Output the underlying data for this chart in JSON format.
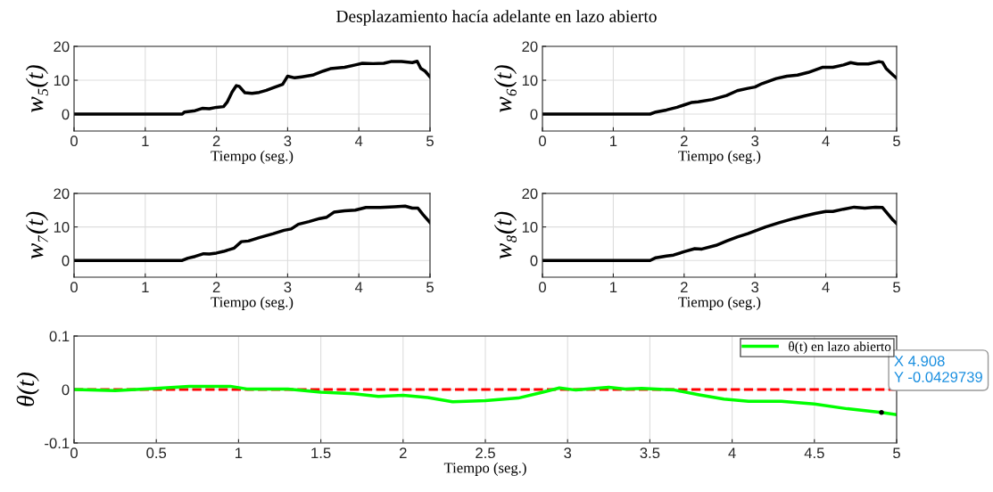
{
  "chart_data": [
    {
      "type": "line",
      "title": "Desplazamiento hacía adelante en lazo abierto",
      "xlabel": "Tiempo (seg.)",
      "ylabel": "w₅(t)",
      "xlim": [
        0,
        5
      ],
      "xticks": [
        0,
        1,
        2,
        3,
        4,
        5
      ],
      "ylim": [
        -5,
        20
      ],
      "yticks": [
        0,
        10,
        20
      ],
      "grid": true,
      "series": [
        {
          "color": "#000000",
          "x": [
            0,
            1.52,
            1.55,
            1.7,
            1.8,
            1.9,
            2.0,
            2.1,
            2.15,
            2.22,
            2.28,
            2.32,
            2.4,
            2.5,
            2.6,
            2.7,
            2.8,
            2.93,
            3.0,
            3.1,
            3.2,
            3.35,
            3.5,
            3.6,
            3.8,
            3.95,
            4.05,
            4.2,
            4.35,
            4.45,
            4.6,
            4.75,
            4.82,
            4.87,
            4.93,
            5.0
          ],
          "values": [
            0,
            0,
            0.6,
            1.0,
            1.7,
            1.6,
            2.0,
            2.2,
            3.5,
            6.5,
            8.4,
            8.2,
            6.3,
            6.1,
            6.4,
            7.0,
            7.8,
            8.8,
            11.2,
            10.7,
            11.0,
            11.5,
            12.7,
            13.4,
            13.8,
            14.5,
            15.0,
            14.9,
            15.0,
            15.5,
            15.5,
            15.2,
            15.6,
            13.5,
            12.7,
            11.0
          ]
        }
      ]
    },
    {
      "type": "line",
      "xlabel": "Tiempo (seg.)",
      "ylabel": "w₆(t)",
      "xlim": [
        0,
        5
      ],
      "xticks": [
        0,
        1,
        2,
        3,
        4,
        5
      ],
      "ylim": [
        -5,
        20
      ],
      "yticks": [
        0,
        10,
        20
      ],
      "grid": true,
      "series": [
        {
          "color": "#000000",
          "x": [
            0,
            1.52,
            1.6,
            1.75,
            1.9,
            2.0,
            2.1,
            2.2,
            2.4,
            2.6,
            2.75,
            2.9,
            3.0,
            3.1,
            3.3,
            3.45,
            3.6,
            3.75,
            3.95,
            4.1,
            4.25,
            4.35,
            4.45,
            4.6,
            4.75,
            4.8,
            4.85,
            4.95,
            5.0
          ],
          "values": [
            0,
            0,
            0.6,
            1.2,
            2.0,
            2.7,
            3.4,
            3.6,
            4.3,
            5.5,
            6.9,
            7.6,
            8.0,
            9.0,
            10.5,
            11.2,
            11.5,
            12.3,
            13.8,
            13.8,
            14.5,
            15.2,
            14.8,
            14.8,
            15.5,
            15.3,
            13.5,
            11.5,
            10.6
          ]
        }
      ]
    },
    {
      "type": "line",
      "xlabel": "Tiempo (seg.)",
      "ylabel": "w₇(t)",
      "xlim": [
        0,
        5
      ],
      "xticks": [
        0,
        1,
        2,
        3,
        4,
        5
      ],
      "ylim": [
        -5,
        20
      ],
      "yticks": [
        0,
        10,
        20
      ],
      "grid": true,
      "series": [
        {
          "color": "#000000",
          "x": [
            0,
            1.52,
            1.6,
            1.7,
            1.82,
            1.9,
            2.0,
            2.1,
            2.25,
            2.35,
            2.45,
            2.6,
            2.8,
            2.95,
            3.05,
            3.15,
            3.3,
            3.45,
            3.55,
            3.65,
            3.8,
            3.95,
            4.1,
            4.3,
            4.5,
            4.65,
            4.75,
            4.83,
            4.9,
            5.0
          ],
          "values": [
            0,
            0,
            0.7,
            1.2,
            2.0,
            1.9,
            2.2,
            2.7,
            3.7,
            5.6,
            5.8,
            6.8,
            8.0,
            9.0,
            9.4,
            10.8,
            11.6,
            12.5,
            12.9,
            14.4,
            14.8,
            15.0,
            15.8,
            15.8,
            16.0,
            16.2,
            15.6,
            15.6,
            13.7,
            11.3
          ]
        }
      ]
    },
    {
      "type": "line",
      "xlabel": "Tiempo (seg.)",
      "ylabel": "w₈(t)",
      "xlim": [
        0,
        5
      ],
      "xticks": [
        0,
        1,
        2,
        3,
        4,
        5
      ],
      "ylim": [
        -5,
        20
      ],
      "yticks": [
        0,
        10,
        20
      ],
      "grid": true,
      "series": [
        {
          "color": "#000000",
          "x": [
            0,
            1.52,
            1.6,
            1.75,
            1.85,
            2.0,
            2.15,
            2.25,
            2.45,
            2.6,
            2.75,
            2.9,
            3.0,
            3.15,
            3.35,
            3.55,
            3.7,
            3.85,
            4.0,
            4.1,
            4.25,
            4.4,
            4.55,
            4.7,
            4.8,
            4.85,
            4.95,
            5.0
          ],
          "values": [
            0,
            0,
            0.8,
            1.3,
            1.6,
            2.6,
            3.5,
            3.4,
            4.5,
            5.8,
            7.0,
            8.0,
            8.8,
            10.0,
            11.3,
            12.5,
            13.3,
            14.0,
            14.6,
            14.6,
            15.3,
            15.9,
            15.6,
            15.9,
            15.8,
            14.5,
            12.0,
            11.0
          ]
        }
      ]
    },
    {
      "type": "line",
      "xlabel": "Tiempo (seg.)",
      "ylabel": "θ(t)",
      "xlim": [
        0,
        5
      ],
      "xticks": [
        0,
        0.5,
        1,
        1.5,
        2,
        2.5,
        3,
        3.5,
        4,
        4.5,
        5
      ],
      "ylim": [
        -0.1,
        0.1
      ],
      "yticks": [
        -0.1,
        0,
        0.1
      ],
      "grid": true,
      "legend": "top right",
      "ref_lines": [
        {
          "axis": "y",
          "value": 0,
          "color": "#ff0000",
          "line_style": "dashed"
        }
      ],
      "annotations": [
        {
          "text": "X 4.908\nY -0.0429739",
          "x": 4.908,
          "y": -0.0429739
        }
      ],
      "series": [
        {
          "name": "θ(t) en lazo abierto",
          "color": "#00ff00",
          "x": [
            0,
            0.25,
            0.5,
            0.7,
            0.95,
            1.05,
            1.3,
            1.5,
            1.7,
            1.85,
            2.0,
            2.15,
            2.3,
            2.5,
            2.7,
            2.85,
            2.95,
            3.05,
            3.25,
            3.35,
            3.45,
            3.65,
            3.8,
            3.95,
            4.1,
            4.3,
            4.5,
            4.7,
            4.908,
            5.0
          ],
          "values": [
            0,
            -0.002,
            0.002,
            0.006,
            0.006,
            0.001,
            0.001,
            -0.005,
            -0.008,
            -0.013,
            -0.011,
            -0.015,
            -0.023,
            -0.021,
            -0.016,
            -0.005,
            0.003,
            -0.001,
            0.004,
            0.001,
            0.002,
            -0.001,
            -0.01,
            -0.018,
            -0.022,
            -0.022,
            -0.027,
            -0.036,
            -0.043,
            -0.047
          ]
        }
      ]
    }
  ]
}
